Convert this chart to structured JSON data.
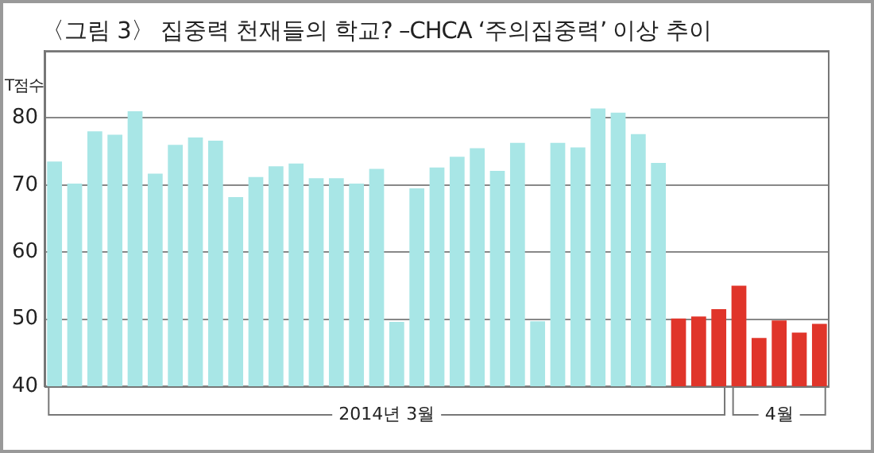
{
  "chart_data": {
    "type": "bar",
    "title": "〈그림 3〉 집중력 천재들의 학교? –CHCA ‘주의집중력’ 이상 추이",
    "ylabel": "T점수",
    "categories": [
      null,
      null,
      null,
      null,
      null,
      null,
      null,
      null,
      null,
      null,
      null,
      null,
      null,
      null,
      null,
      null,
      null,
      null,
      null,
      null,
      null,
      null,
      null,
      null,
      null,
      null,
      null,
      null,
      null,
      null,
      null,
      null,
      null,
      null,
      null,
      null,
      null,
      null,
      null
    ],
    "values": [
      73.5,
      70.2,
      78.0,
      77.5,
      81.0,
      71.7,
      76.0,
      77.1,
      76.6,
      68.2,
      71.2,
      72.8,
      73.2,
      71.0,
      71.0,
      70.2,
      72.4,
      49.6,
      69.5,
      72.6,
      74.2,
      75.5,
      72.1,
      76.3,
      49.7,
      76.3,
      75.6,
      81.4,
      80.8,
      77.6,
      73.3,
      50.1,
      50.4,
      51.5,
      55.0,
      47.2,
      49.8,
      48.0,
      49.3
    ],
    "colors": [
      "#a8e6e6",
      "#a8e6e6",
      "#a8e6e6",
      "#a8e6e6",
      "#a8e6e6",
      "#a8e6e6",
      "#a8e6e6",
      "#a8e6e6",
      "#a8e6e6",
      "#a8e6e6",
      "#a8e6e6",
      "#a8e6e6",
      "#a8e6e6",
      "#a8e6e6",
      "#a8e6e6",
      "#a8e6e6",
      "#a8e6e6",
      "#a8e6e6",
      "#a8e6e6",
      "#a8e6e6",
      "#a8e6e6",
      "#a8e6e6",
      "#a8e6e6",
      "#a8e6e6",
      "#a8e6e6",
      "#a8e6e6",
      "#a8e6e6",
      "#a8e6e6",
      "#a8e6e6",
      "#a8e6e6",
      "#a8e6e6",
      "#e0352a",
      "#e0352a",
      "#e0352a",
      "#e0352a",
      "#e0352a",
      "#e0352a",
      "#e0352a",
      "#e0352a"
    ],
    "ylim": [
      40,
      90
    ],
    "yticks": [
      40,
      50,
      60,
      70,
      80,
      {
        "value": 90,
        "label": null
      }
    ],
    "grid": "y",
    "legend": false,
    "annotations": [
      "2014년 3월",
      "4월"
    ]
  }
}
